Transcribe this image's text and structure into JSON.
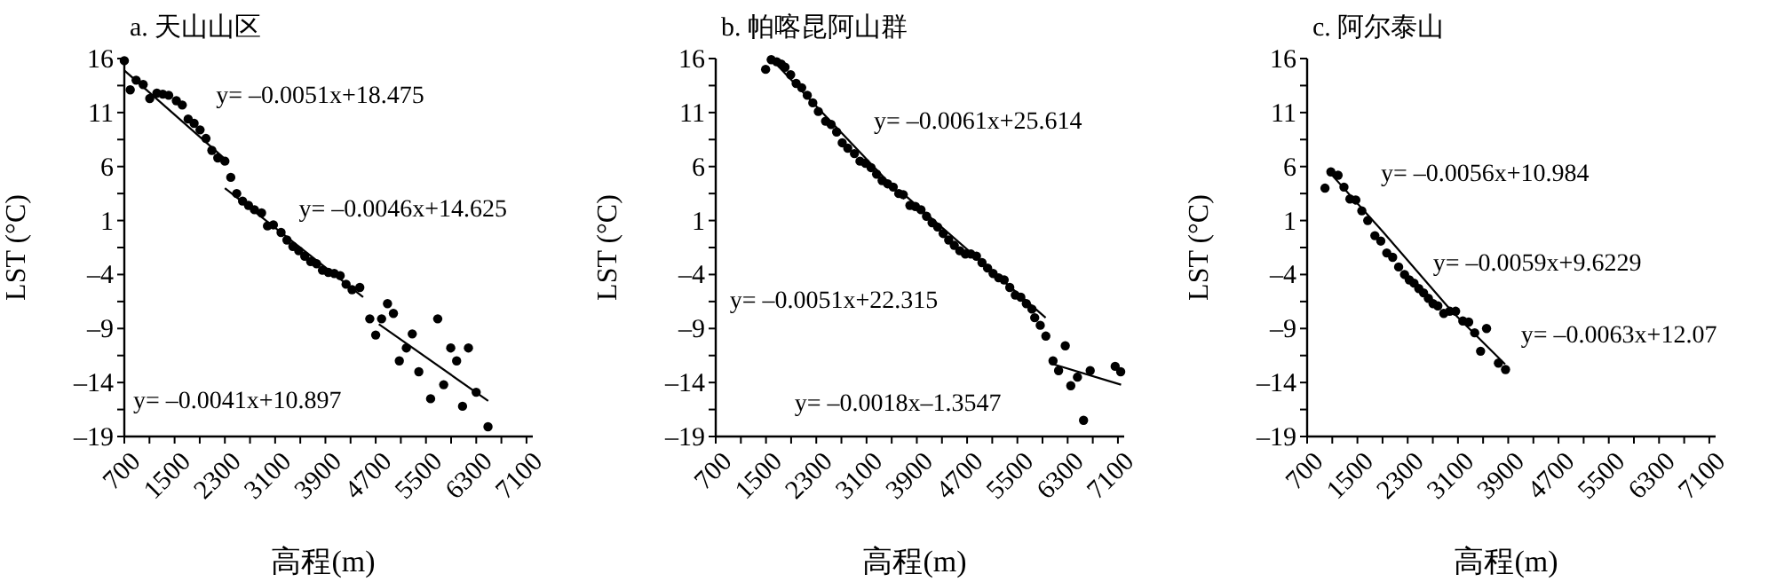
{
  "chart_data": [
    {
      "type": "scatter",
      "title": "a. 天山山区",
      "xlabel": "高程(m)",
      "ylabel": "LST (°C)",
      "marker": "circle",
      "grid": false,
      "xlim": [
        700,
        7200
      ],
      "ylim": [
        -19,
        16
      ],
      "xticks": [
        700,
        {
          "value": 1100,
          "label": null
        },
        1500,
        {
          "value": 1900,
          "label": null
        },
        2300,
        {
          "value": 2700,
          "label": null
        },
        3100,
        {
          "value": 3500,
          "label": null
        },
        3900,
        {
          "value": 4300,
          "label": null
        },
        4700,
        {
          "value": 5100,
          "label": null
        },
        5500,
        {
          "value": 5900,
          "label": null
        },
        6300,
        {
          "value": 6700,
          "label": null
        },
        7100
      ],
      "yticks": [
        16,
        {
          "value": 13.5,
          "label": null
        },
        11,
        {
          "value": 8.5,
          "label": null
        },
        6,
        {
          "value": 3.5,
          "label": null
        },
        1,
        {
          "value": -1.5,
          "label": null
        },
        {
          "value": -4,
          "label": "–4"
        },
        {
          "value": -6.5,
          "label": null
        },
        {
          "value": -9,
          "label": "–9"
        },
        {
          "value": -11.5,
          "label": null
        },
        {
          "value": -14,
          "label": "–14"
        },
        {
          "value": -16.5,
          "label": null
        },
        {
          "value": -19,
          "label": "–19"
        }
      ],
      "annotations": [
        "y= –0.0051x+18.475",
        "y= –0.0046x+14.625",
        "y= –0.0041x+10.897"
      ],
      "series": [
        {
          "type": "scatter",
          "color": "#000000",
          "x": [
            700,
            794,
            888,
            1000,
            1105,
            1218,
            1312,
            1406,
            1528,
            1622,
            1716,
            1810,
            1905,
            1999,
            2093,
            2187,
            2300,
            2394,
            2488,
            2582,
            2676,
            2771,
            2884,
            2978,
            3072,
            3194,
            3288,
            3382,
            3476,
            3571,
            3665,
            3759,
            3853,
            3947,
            4041,
            4135,
            4229,
            4324,
            4447,
            4606,
            4700,
            4794,
            4888,
            4982,
            5076,
            5188,
            5282,
            5386,
            5574,
            5687,
            5782,
            5894,
            5988,
            6082,
            6176,
            6299,
            6487
          ],
          "values": [
            15.8,
            13.1,
            14.0,
            13.6,
            12.3,
            12.8,
            12.7,
            12.6,
            12.1,
            11.7,
            10.4,
            10.0,
            9.4,
            8.6,
            7.5,
            6.8,
            6.5,
            5.0,
            3.5,
            2.8,
            2.4,
            2.0,
            1.7,
            0.5,
            0.6,
            -0.1,
            -0.8,
            -1.4,
            -1.8,
            -2.3,
            -2.8,
            -3.0,
            -3.6,
            -3.8,
            -3.9,
            -4.1,
            -4.9,
            -5.4,
            -5.2,
            -8.1,
            -9.6,
            -8.1,
            -6.7,
            -7.6,
            -12.0,
            -10.8,
            -9.5,
            -13.0,
            -15.5,
            -8.1,
            -14.2,
            -10.8,
            -12.0,
            -16.2,
            -10.8,
            -14.9,
            -18.1
          ]
        },
        {
          "type": "line",
          "marker": "none",
          "color": "#000000",
          "x": [
            700,
            2300
          ],
          "values": [
            14.9,
            6.7
          ]
        },
        {
          "type": "line",
          "marker": "none",
          "color": "#000000",
          "x": [
            2300,
            4500
          ],
          "values": [
            4.0,
            -6.1
          ]
        },
        {
          "type": "line",
          "marker": "none",
          "color": "#000000",
          "x": [
            4750,
            6490
          ],
          "values": [
            -8.6,
            -15.7
          ]
        }
      ]
    },
    {
      "type": "scatter",
      "title": "b. 帕喀昆阿山群",
      "xlabel": "高程(m)",
      "ylabel": "LST (°C)",
      "marker": "circle",
      "grid": false,
      "xlim": [
        700,
        7200
      ],
      "ylim": [
        -19,
        16
      ],
      "xticks": [
        700,
        {
          "value": 1100,
          "label": null
        },
        1500,
        {
          "value": 1900,
          "label": null
        },
        2300,
        {
          "value": 2700,
          "label": null
        },
        3100,
        {
          "value": 3500,
          "label": null
        },
        3900,
        {
          "value": 4300,
          "label": null
        },
        4700,
        {
          "value": 5100,
          "label": null
        },
        5500,
        {
          "value": 5900,
          "label": null
        },
        6300,
        {
          "value": 6700,
          "label": null
        },
        7100
      ],
      "yticks": [
        16,
        {
          "value": 13.5,
          "label": null
        },
        11,
        {
          "value": 8.5,
          "label": null
        },
        6,
        {
          "value": 3.5,
          "label": null
        },
        1,
        {
          "value": -1.5,
          "label": null
        },
        {
          "value": -4,
          "label": "–4"
        },
        {
          "value": -6.5,
          "label": null
        },
        {
          "value": -9,
          "label": "–9"
        },
        {
          "value": -11.5,
          "label": null
        },
        {
          "value": -14,
          "label": "–14"
        },
        {
          "value": -16.5,
          "label": null
        },
        {
          "value": -19,
          "label": "–19"
        }
      ],
      "annotations": [
        "y= –0.0061x+25.614",
        "y= –0.0051x+22.315",
        "y= –0.0018x–1.3547"
      ],
      "series": [
        {
          "type": "scatter",
          "color": "#000000",
          "x": [
            1494,
            1583,
            1671,
            1742,
            1803,
            1892,
            1980,
            2068,
            2157,
            2245,
            2333,
            2448,
            2536,
            2624,
            2713,
            2801,
            2907,
            2995,
            3083,
            3172,
            3260,
            3348,
            3436,
            3525,
            3613,
            3684,
            3790,
            3878,
            3966,
            4054,
            4143,
            4231,
            4319,
            4407,
            4496,
            4584,
            4672,
            4761,
            4849,
            4937,
            5026,
            5114,
            5202,
            5290,
            5379,
            5467,
            5555,
            5643,
            5732,
            5776,
            5864,
            5953,
            6067,
            6156,
            6262,
            6350,
            6456,
            6553,
            6659,
            7056,
            7144
          ],
          "values": [
            15.0,
            15.9,
            15.7,
            15.5,
            15.2,
            14.5,
            13.7,
            13.3,
            12.6,
            11.9,
            11.1,
            10.2,
            9.9,
            9.2,
            8.2,
            7.7,
            7.2,
            6.5,
            6.3,
            5.9,
            5.3,
            4.7,
            4.4,
            4.1,
            3.5,
            3.4,
            2.4,
            2.3,
            2.0,
            1.4,
            0.8,
            0.4,
            -0.2,
            -0.8,
            -1.3,
            -1.8,
            -2.1,
            -2.1,
            -2.3,
            -2.9,
            -3.4,
            -3.9,
            -4.3,
            -4.5,
            -5.2,
            -5.9,
            -6.1,
            -6.7,
            -7.2,
            -8.0,
            -8.7,
            -9.7,
            -12.0,
            -12.9,
            -10.6,
            -14.3,
            -13.5,
            -17.5,
            -12.9,
            -12.5,
            -13.0
          ]
        },
        {
          "type": "line",
          "marker": "none",
          "color": "#000000",
          "x": [
            1580,
            3700
          ],
          "values": [
            16.0,
            3.0
          ]
        },
        {
          "type": "line",
          "marker": "none",
          "color": "#000000",
          "x": [
            3700,
            5950
          ],
          "values": [
            3.4,
            -8.0
          ]
        },
        {
          "type": "line",
          "marker": "none",
          "color": "#000000",
          "x": [
            6070,
            7150
          ],
          "values": [
            -12.3,
            -14.2
          ]
        }
      ]
    },
    {
      "type": "scatter",
      "title": "c. 阿尔泰山",
      "xlabel": "高程(m)",
      "ylabel": "LST (°C)",
      "marker": "circle",
      "grid": false,
      "xlim": [
        700,
        7200
      ],
      "ylim": [
        -19,
        16
      ],
      "xticks": [
        700,
        {
          "value": 1100,
          "label": null
        },
        1500,
        {
          "value": 1900,
          "label": null
        },
        2300,
        {
          "value": 2700,
          "label": null
        },
        3100,
        {
          "value": 3500,
          "label": null
        },
        3900,
        {
          "value": 4300,
          "label": null
        },
        4700,
        {
          "value": 5100,
          "label": null
        },
        5500,
        {
          "value": 5900,
          "label": null
        },
        6300,
        {
          "value": 6700,
          "label": null
        },
        7100
      ],
      "yticks": [
        16,
        {
          "value": 13.5,
          "label": null
        },
        11,
        {
          "value": 8.5,
          "label": null
        },
        6,
        {
          "value": 3.5,
          "label": null
        },
        1,
        {
          "value": -1.5,
          "label": null
        },
        {
          "value": -4,
          "label": "–4"
        },
        {
          "value": -6.5,
          "label": null
        },
        {
          "value": -9,
          "label": "–9"
        },
        {
          "value": -11.5,
          "label": null
        },
        {
          "value": -14,
          "label": "–14"
        },
        {
          "value": -16.5,
          "label": null
        },
        {
          "value": -19,
          "label": "–19"
        }
      ],
      "annotations": [
        "y= –0.0056x+10.984",
        "y= –0.0059x+9.6229",
        "y= –0.0063x+12.07"
      ],
      "series": [
        {
          "type": "scatter",
          "color": "#000000",
          "x": [
            984,
            1078,
            1192,
            1286,
            1381,
            1475,
            1570,
            1664,
            1778,
            1872,
            1967,
            2061,
            2156,
            2250,
            2326,
            2401,
            2477,
            2553,
            2629,
            2704,
            2780,
            2874,
            2969,
            3063,
            3177,
            3271,
            3366,
            3460,
            3555,
            3744,
            3857
          ],
          "values": [
            4.0,
            5.5,
            5.2,
            4.1,
            3.0,
            2.9,
            1.9,
            1.0,
            -0.4,
            -0.9,
            -2.0,
            -2.4,
            -3.3,
            -4.0,
            -4.5,
            -4.8,
            -5.3,
            -5.7,
            -6.2,
            -6.7,
            -6.9,
            -7.6,
            -7.4,
            -7.4,
            -8.3,
            -8.4,
            -9.4,
            -11.1,
            -9.0,
            -12.2,
            -12.8
          ]
        },
        {
          "type": "line",
          "marker": "none",
          "color": "#000000",
          "x": [
            1020,
            1900,
            3000,
            3850
          ],
          "values": [
            5.7,
            0.0,
            -7.4,
            -12.3
          ]
        }
      ]
    }
  ]
}
